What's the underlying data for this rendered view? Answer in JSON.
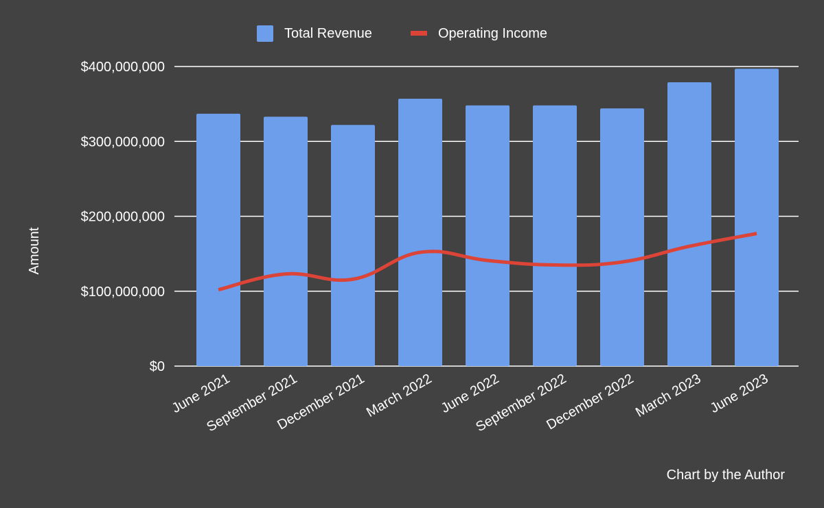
{
  "chart_data": {
    "type": "bar",
    "categories": [
      "June 2021",
      "September 2021",
      "December 2021",
      "March 2022",
      "June 2022",
      "September 2022",
      "December 2022",
      "March 2023",
      "June 2023"
    ],
    "series": [
      {
        "name": "Total Revenue",
        "type": "bar",
        "color": "#6d9eeb",
        "values": [
          337000000,
          333000000,
          322000000,
          357000000,
          348000000,
          348000000,
          344000000,
          379000000,
          397000000
        ]
      },
      {
        "name": "Operating Income",
        "type": "line",
        "color": "#db4437",
        "values": [
          102000000,
          123000000,
          116000000,
          152000000,
          141000000,
          135000000,
          139000000,
          160000000,
          177000000
        ]
      }
    ],
    "ylabel": "Amount",
    "xlabel": "",
    "ylim": [
      0,
      400000000
    ],
    "yticks": [
      0,
      100000000,
      200000000,
      300000000,
      400000000
    ],
    "ytick_labels": [
      "$0",
      "$100,000,000",
      "$200,000,000",
      "$300,000,000",
      "$400,000,000"
    ],
    "grid": true,
    "legend": "top-center",
    "credit": "Chart by the Author"
  }
}
